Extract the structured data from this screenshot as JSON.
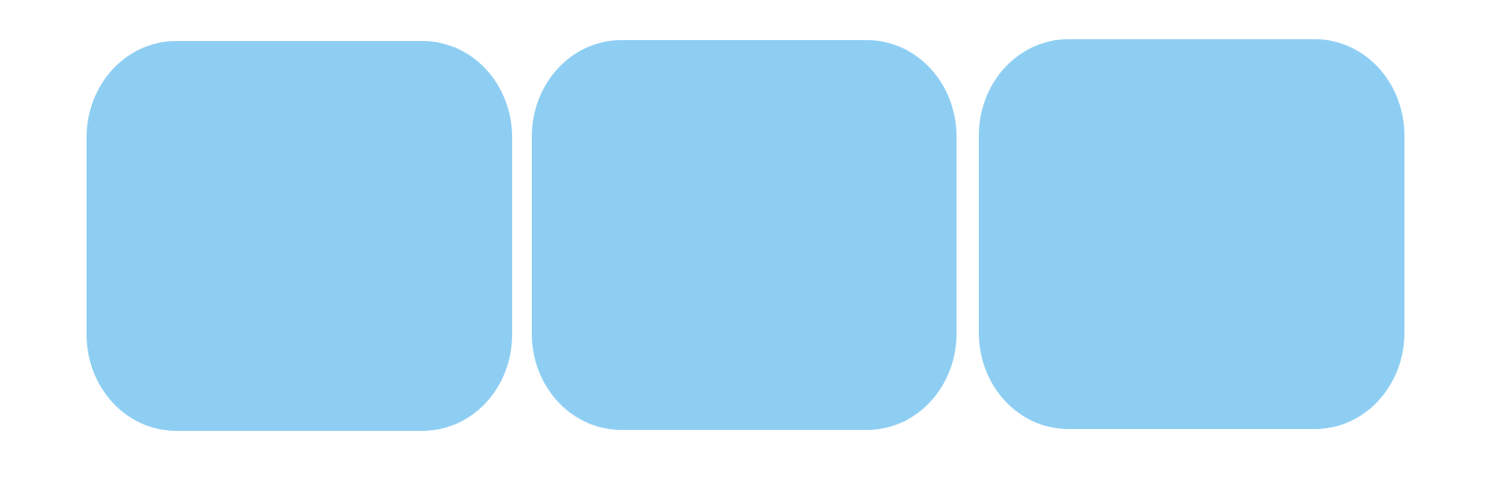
{
  "tiles": [
    {
      "color": "#8ecef3"
    },
    {
      "color": "#8ecef3"
    },
    {
      "color": "#8ecef3"
    }
  ]
}
